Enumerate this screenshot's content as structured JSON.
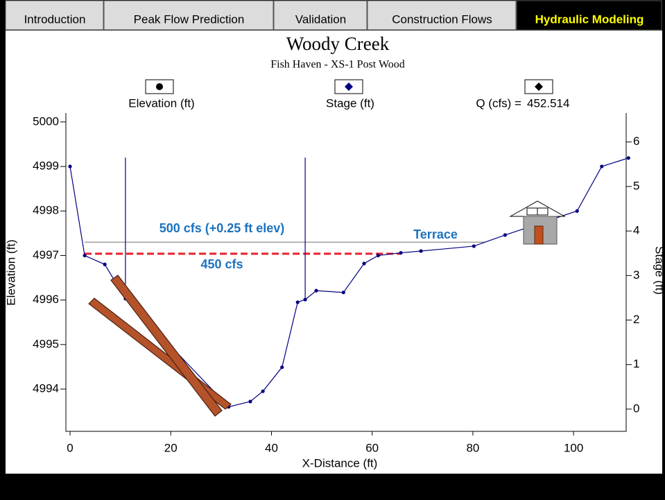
{
  "tabs": [
    "Introduction",
    "Peak Flow Prediction",
    "Validation",
    "Construction Flows",
    "Hydraulic Modeling"
  ],
  "active_tab": 4,
  "chart_data": {
    "type": "line",
    "title": "Woody Creek",
    "subtitle": "Fish Haven - XS-1 Post Wood",
    "q_label": "Q (cfs) =",
    "q_value": 452.514,
    "xlabel": "X-Distance (ft)",
    "ylabel": "Elevation (ft)",
    "y2label": "Stage (ft)",
    "xlim": [
      -0.83,
      111.0
    ],
    "ylim": [
      4993.05,
      5000.2
    ],
    "y2lim": [
      -0.5,
      6.65
    ],
    "xticks": [
      0,
      20,
      40,
      60,
      80,
      100
    ],
    "yticks": [
      4994,
      4995,
      4996,
      4997,
      4998,
      4999,
      5000
    ],
    "y2ticks": [
      0,
      1,
      2,
      3,
      4,
      5,
      6
    ],
    "series": [
      {
        "name": "Elevation (ft)",
        "color": "#000080",
        "x": [
          0,
          2.9,
          6.9,
          11.0,
          31.5,
          35.8,
          38.3,
          42.1,
          45.2,
          46.7,
          48.9,
          54.3,
          58.4,
          61.2,
          65.7,
          69.7,
          80.2,
          86.4,
          100.7,
          105.6,
          110.9
        ],
        "values": [
          4999.0,
          4997.0,
          4996.8,
          4996.03,
          4993.6,
          4993.72,
          4993.95,
          4994.49,
          4995.95,
          4996.01,
          4996.21,
          4996.17,
          4996.82,
          4997.0,
          4997.06,
          4997.1,
          4997.21,
          4997.46,
          4998.0,
          4999.0,
          4999.19
        ]
      },
      {
        "name": "Stage (ft)",
        "color": "#000080",
        "axis": "y2",
        "x": [
          11.0,
          11.0,
          null,
          46.7,
          46.7
        ],
        "values": [
          5.65,
          2.8,
          null,
          5.65,
          2.5
        ]
      }
    ],
    "lines": [
      {
        "label": "500 cfs (+0.25 ft elev)",
        "color": "#808080",
        "x": [
          2.9,
          82.5
        ],
        "values": [
          4997.3,
          4997.3
        ]
      },
      {
        "label": "450 cfs",
        "color": "#e8202a",
        "dashed": true,
        "x": [
          2.9,
          65.7
        ],
        "values": [
          4997.04,
          4997.04
        ]
      }
    ],
    "annotations": [
      "Terrace"
    ]
  }
}
